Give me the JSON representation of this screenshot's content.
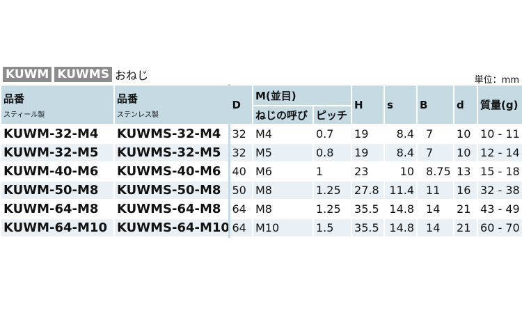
{
  "title": {
    "tag1": "KUWM",
    "tag2": "KUWMS",
    "suffix": "おねじ"
  },
  "unit": "単位：mm",
  "headers": {
    "pn_steel": "品番",
    "pn_steel_sub": "スティール製",
    "pn_stainless": "品番",
    "pn_stainless_sub": "ステンレス製",
    "D": "D",
    "M": "M(並目)",
    "thread": "ねじの呼び",
    "pitch": "ピッチ",
    "H": "H",
    "s": "s",
    "B": "B",
    "d": "d",
    "mass": "質量(g)"
  },
  "rows": [
    [
      "KUWM-32-M4",
      "KUWMS-32-M4",
      "32",
      "M4",
      "0.7",
      "19",
      "8.4",
      "7",
      "10",
      "10 - 11"
    ],
    [
      "KUWM-32-M5",
      "KUWMS-32-M5",
      "32",
      "M5",
      "0.8",
      "19",
      "8.4",
      "7",
      "10",
      "12 - 14"
    ],
    [
      "KUWM-40-M6",
      "KUWMS-40-M6",
      "40",
      "M6",
      "1",
      "23",
      "10",
      "8.75",
      "13",
      "15 - 18"
    ],
    [
      "KUWM-50-M8",
      "KUWMS-50-M8",
      "50",
      "M8",
      "1.25",
      "27.8",
      "11.4",
      "11",
      "16",
      "32 - 38"
    ],
    [
      "KUWM-64-M8",
      "KUWMS-64-M8",
      "64",
      "M8",
      "1.25",
      "35.5",
      "14.8",
      "14",
      "21",
      "43 - 49"
    ],
    [
      "KUWM-64-M10",
      "KUWMS-64-M10",
      "64",
      "M10",
      "1.5",
      "35.5",
      "14.8",
      "14",
      "21",
      "60 - 70"
    ]
  ]
}
